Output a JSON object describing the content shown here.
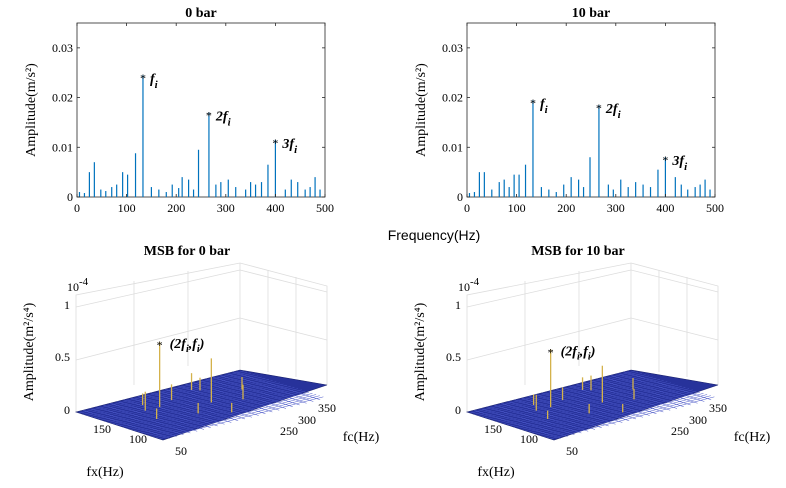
{
  "figure": {
    "shared_xlabel": "Frequency(Hz)"
  },
  "chart_data": [
    {
      "type": "bar",
      "title": "0 bar",
      "xlabel": "",
      "ylabel": "Amplitude(m/s²)",
      "xlim": [
        0,
        500
      ],
      "ylim": [
        0,
        0.035
      ],
      "xticks": [
        0,
        100,
        200,
        300,
        400,
        500
      ],
      "yticks": [
        0,
        0.01,
        0.02,
        0.03
      ],
      "ytick_labels": [
        "0",
        "0.01",
        "0.02",
        "0.03"
      ],
      "color": "#0072bd",
      "x": [
        5,
        15,
        25,
        35,
        48,
        58,
        70,
        80,
        92,
        102,
        118,
        133,
        150,
        165,
        180,
        192,
        205,
        212,
        225,
        235,
        245,
        266,
        280,
        290,
        305,
        320,
        340,
        350,
        360,
        372,
        385,
        400,
        420,
        432,
        445,
        460,
        470,
        480,
        490
      ],
      "values": [
        0.001,
        0.0008,
        0.005,
        0.007,
        0.0015,
        0.0012,
        0.002,
        0.0025,
        0.005,
        0.0045,
        0.0088,
        0.0245,
        0.002,
        0.0015,
        0.001,
        0.0025,
        0.0018,
        0.004,
        0.0035,
        0.0015,
        0.0095,
        0.017,
        0.0025,
        0.003,
        0.0035,
        0.002,
        0.0015,
        0.003,
        0.0025,
        0.003,
        0.0065,
        0.0115,
        0.0015,
        0.0035,
        0.003,
        0.0015,
        0.002,
        0.004,
        0.0015
      ],
      "peaks": [
        {
          "x": 133,
          "y": 0.0245,
          "label": "f",
          "sub": "i"
        },
        {
          "x": 266,
          "y": 0.017,
          "label": "2f",
          "sub": "i"
        },
        {
          "x": 400,
          "y": 0.0115,
          "label": "3f",
          "sub": "i"
        }
      ]
    },
    {
      "type": "bar",
      "title": "10 bar",
      "xlabel": "",
      "ylabel": "Amplitude(m/s²)",
      "xlim": [
        0,
        500
      ],
      "ylim": [
        0,
        0.035
      ],
      "xticks": [
        0,
        100,
        200,
        300,
        400,
        500
      ],
      "yticks": [
        0,
        0.01,
        0.02,
        0.03
      ],
      "ytick_labels": [
        "0",
        "0.01",
        "0.02",
        "0.03"
      ],
      "color": "#0072bd",
      "x": [
        5,
        15,
        25,
        35,
        50,
        65,
        75,
        85,
        95,
        105,
        118,
        133,
        150,
        165,
        180,
        195,
        210,
        225,
        235,
        248,
        266,
        285,
        295,
        310,
        325,
        340,
        355,
        370,
        385,
        400,
        420,
        432,
        445,
        460,
        470,
        480,
        490
      ],
      "values": [
        0.0008,
        0.001,
        0.005,
        0.005,
        0.0015,
        0.003,
        0.0035,
        0.002,
        0.0045,
        0.0045,
        0.0065,
        0.0195,
        0.002,
        0.0015,
        0.001,
        0.0025,
        0.004,
        0.0035,
        0.002,
        0.008,
        0.0185,
        0.0025,
        0.0015,
        0.0035,
        0.002,
        0.003,
        0.0025,
        0.002,
        0.0055,
        0.008,
        0.004,
        0.0025,
        0.0015,
        0.002,
        0.0025,
        0.0035,
        0.0015
      ],
      "peaks": [
        {
          "x": 133,
          "y": 0.0195,
          "label": "f",
          "sub": "i"
        },
        {
          "x": 266,
          "y": 0.0185,
          "label": "2f",
          "sub": "i"
        },
        {
          "x": 400,
          "y": 0.008,
          "label": "3f",
          "sub": "i"
        }
      ]
    },
    {
      "type": "bar3d",
      "title": "MSB for 0 bar",
      "xlabel": "fx(Hz)",
      "ylabel": "fc(Hz)",
      "zlabel": "Amplitude(m²/s⁴)",
      "z_exponent": "10",
      "z_exponent_power": "-4",
      "xticks": [
        150,
        100,
        50
      ],
      "yticks": [
        250,
        300,
        350
      ],
      "zticks": [
        0,
        0.5,
        1
      ],
      "zlim": [
        0,
        1
      ],
      "stem_color": "#d4b24c",
      "floor_color": "#27329b",
      "peak": {
        "fx": 133,
        "fc": 266,
        "z": 0.62,
        "label": "(2f",
        "sub1": "i",
        "mid": ",f",
        "sub2": "i",
        "close": ")"
      },
      "stems": [
        {
          "fx": 133,
          "fc": 266,
          "z": 0.62
        },
        {
          "fx": 88,
          "fc": 300,
          "z": 0.42
        },
        {
          "fx": 150,
          "fc": 265,
          "z": 0.18
        },
        {
          "fx": 110,
          "fc": 250,
          "z": 0.15
        },
        {
          "fx": 70,
          "fc": 240,
          "z": 0.12
        },
        {
          "fx": 60,
          "fc": 320,
          "z": 0.14
        },
        {
          "fx": 120,
          "fc": 330,
          "z": 0.1
        },
        {
          "fx": 40,
          "fc": 280,
          "z": 0.12
        },
        {
          "fx": 160,
          "fc": 310,
          "z": 0.1
        },
        {
          "fx": 95,
          "fc": 360,
          "z": 0.09
        },
        {
          "fx": 75,
          "fc": 230,
          "z": 0.16
        },
        {
          "fx": 140,
          "fc": 240,
          "z": 0.11
        }
      ]
    },
    {
      "type": "bar3d",
      "title": "MSB for 10 bar",
      "xlabel": "fx(Hz)",
      "ylabel": "fc(Hz)",
      "zlabel": "Amplitude(m²/s⁴)",
      "z_exponent": "10",
      "z_exponent_power": "-4",
      "xticks": [
        150,
        100,
        50
      ],
      "yticks": [
        250,
        300,
        350
      ],
      "zticks": [
        0,
        0.5,
        1
      ],
      "zlim": [
        0,
        1
      ],
      "stem_color": "#d4b24c",
      "floor_color": "#27329b",
      "peak": {
        "fx": 133,
        "fc": 266,
        "z": 0.55,
        "label": "(2f",
        "sub1": "i",
        "mid": ",f",
        "sub2": "i",
        "close": ")"
      },
      "stems": [
        {
          "fx": 133,
          "fc": 266,
          "z": 0.55
        },
        {
          "fx": 88,
          "fc": 300,
          "z": 0.35
        },
        {
          "fx": 150,
          "fc": 265,
          "z": 0.15
        },
        {
          "fx": 110,
          "fc": 250,
          "z": 0.12
        },
        {
          "fx": 70,
          "fc": 240,
          "z": 0.14
        },
        {
          "fx": 60,
          "fc": 320,
          "z": 0.1
        },
        {
          "fx": 120,
          "fc": 330,
          "z": 0.09
        },
        {
          "fx": 40,
          "fc": 280,
          "z": 0.11
        },
        {
          "fx": 160,
          "fc": 310,
          "z": 0.08
        },
        {
          "fx": 95,
          "fc": 360,
          "z": 0.08
        },
        {
          "fx": 75,
          "fc": 230,
          "z": 0.12
        },
        {
          "fx": 140,
          "fc": 240,
          "z": 0.1
        }
      ]
    }
  ]
}
